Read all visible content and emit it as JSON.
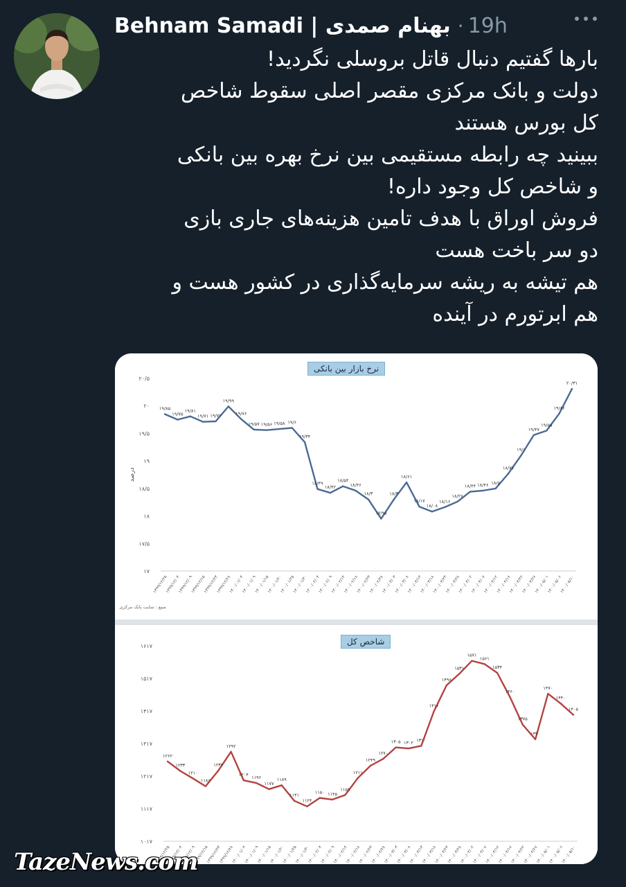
{
  "tweet": {
    "author": "Behnam Samadi | بهنام صمدی",
    "separator": "·",
    "time": "19h",
    "lines": [
      "بارها گفتیم دنبال قاتل بروسلی نگردید!",
      "دولت و بانک مرکزی مقصر اصلی سقوط شاخص",
      "کل بورس هستند",
      "ببینید چه رابطه مستقیمی بین نرخ بهره بین بانکی",
      "و شاخص کل وجود داره!",
      "فروش اوراق با هدف تامین هزینه‌های جاری بازی",
      "دو سر باخت هست",
      "هم تیشه به ریشه سرمایه‌گذاری در کشور هست و",
      "هم ابرتورم در آینده"
    ]
  },
  "watermark": "TazeNews.com",
  "chart_data": [
    {
      "type": "line",
      "title": "نرخ بازار بین بانکی",
      "ylabel": "درصد",
      "source": "منبع : سایت بانک مرکزی",
      "ylim": [
        17,
        20.5
      ],
      "yticks": [
        "۱۷",
        "۱۷/۵",
        "۱۸",
        "۱۸/۵",
        "۱۹",
        "۱۹/۵",
        "۲۰",
        "۲۰/۵"
      ],
      "color": "#4a6a93",
      "values": [
        19.85,
        19.75,
        19.81,
        19.71,
        19.72,
        19.99,
        19.76,
        19.57,
        19.56,
        19.58,
        19.6,
        19.34,
        18.49,
        18.42,
        18.54,
        18.46,
        18.3,
        17.95,
        18.3,
        18.61,
        18.17,
        18.08,
        18.16,
        18.26,
        18.44,
        18.46,
        18.5,
        18.77,
        19.1,
        19.47,
        19.55,
        19.86,
        20.31
      ],
      "labels": [
        "۱۹/۸۵",
        "۱۹/۷۵",
        "۱۹/۸۱",
        "۱۹/۷۱",
        "۱۹/۷۲",
        "۱۹/۹۹",
        "۱۹/۷۶",
        "۱۹/۵۷",
        "۱۹/۵۶",
        "۱۹/۵۸",
        "۱۹/۶",
        "۱۹/۳۴",
        "۱۸/۴۹",
        "۱۸/۴۲",
        "۱۸/۵۴",
        "۱۸/۴۶",
        "۱۸/۳",
        "۱۷/۹۵",
        "۱۸/۳",
        "۱۸/۶۱",
        "۱۸/۱۷",
        "۱۸/۰۸",
        "۱۸/۱۶",
        "۱۸/۲۶",
        "۱۸/۴۴",
        "۱۸/۴۶",
        "۱۸/۵",
        "۱۸/۷۷",
        "۱۹/۱",
        "۱۹/۴۷",
        "۱۹/۵۵",
        "۱۹/۸۶",
        "۲۰/۳۱"
      ],
      "xticks": [
        "۱۳۹۹/۱۲/۲۵",
        "۱۳۹۹/۱۲/۰۴",
        "۱۳۹۹/۱۲/۰۹",
        "۱۳۹۹/۱۲/۱۵",
        "۱۳۹۹/۱۲/۲۳",
        "۱۳۹۹/۱۲/۲۸",
        "۱۴۰۰/۰۱/۰۴",
        "۱۴۰۰/۰۱/۰۹",
        "۱۴۰۰/۰۱/۱۵",
        "۱۴۰۰/۰۱/۲۰",
        "۱۴۰۰/۰۱/۲۵",
        "۱۴۰۰/۰۱/۳۰",
        "۱۴۰۰/۰۲/۰۴",
        "۱۴۰۰/۰۲/۰۹",
        "۱۴۰۰/۰۲/۱۴",
        "۱۴۰۰/۰۲/۱۸",
        "۱۴۰۰/۰۲/۲۳",
        "۱۴۰۰/۰۲/۲۸",
        "۱۴۰۰/۰۳/۰۳",
        "۱۴۰۰/۰۳/۰۸",
        "۱۴۰۰/۰۳/۱۳",
        "۱۴۰۰/۰۳/۱۸",
        "۱۴۰۰/۰۳/۲۳",
        "۱۴۰۰/۰۳/۲۸",
        "۱۴۰۰/۰۴/۰۲",
        "۱۴۰۰/۰۴/۰۷",
        "۱۴۰۰/۰۴/۱۲",
        "۱۴۰۰/۰۴/۱۷",
        "۱۴۰۰/۰۴/۲۲",
        "۱۴۰۰/۰۴/۲۷",
        "۱۴۰۰/۰۵/۰۱",
        "۱۴۰۰/۰۵/۰۶",
        "۱۴۰۰/۰۵/۱۰"
      ]
    },
    {
      "type": "line",
      "title": "شاخص کل",
      "ylabel": "",
      "ylim": [
        1017000,
        1617000
      ],
      "yticks": [
        "۱۰۱۷",
        "۱۱۱۷",
        "۱۲۱۷",
        "۱۳۱۷",
        "۱۴۱۷",
        "۱۵۱۷",
        "۱۶۱۷"
      ],
      "color": "#b3423f",
      "values": [
        1262000,
        1233000,
        1210000,
        1186000,
        1234000,
        1292000,
        1204000,
        1196000,
        1177000,
        1189000,
        1141000,
        1124000,
        1150000,
        1145000,
        1159000,
        1211000,
        1249000,
        1270000,
        1305000,
        1302000,
        1310000,
        1416000,
        1496000,
        1531000,
        1571000,
        1561000,
        1534000,
        1460000,
        1375000,
        1330000,
        1470000,
        1440000,
        1405000
      ],
      "labels": [
        "۱۲۶۲",
        "۱۲۳۳",
        "۱۲۱۰",
        "۱۱۸۶",
        "۱۲۳۴",
        "۱۲۹۲",
        "۱۲۰۴",
        "۱۱۹۶",
        "۱۱۷۷",
        "۱۱۸۹",
        "۱۱۴۱",
        "۱۱۲۴",
        "۱۱۵۰",
        "۱۱۴۵",
        "۱۱۵۹",
        "۱۲۱۱",
        "۱۲۴۹",
        "۱۲۷۰",
        "۱۳۰۵",
        "۱۳۰۲",
        "۱۳۱۰",
        "۱۴۱۶",
        "۱۴۹۶",
        "۱۵۳۱",
        "۱۵۷۱",
        "۱۵۶۱",
        "۱۵۳۴",
        "۱۴۶۰",
        "۱۳۷۵",
        "۱۳۳۰",
        "۱۴۷۰",
        "۱۴۴۰",
        "۱۴۰۵"
      ],
      "xticks": [
        "۱۳۹۹/۱۲/۲۵",
        "۱۳۹۹/۱۲/۰۴",
        "۱۳۹۹/۱۲/۰۹",
        "۱۳۹۹/۱۲/۱۵",
        "۱۳۹۹/۱۲/۲۳",
        "۱۳۹۹/۱۲/۲۸",
        "۱۴۰۰/۰۱/۰۴",
        "۱۴۰۰/۰۱/۰۹",
        "۱۴۰۰/۰۱/۱۵",
        "۱۴۰۰/۰۱/۲۰",
        "۱۴۰۰/۰۱/۲۵",
        "۱۴۰۰/۰۱/۳۰",
        "۱۴۰۰/۰۲/۰۴",
        "۱۴۰۰/۰۲/۰۹",
        "۱۴۰۰/۰۲/۱۴",
        "۱۴۰۰/۰۲/۱۸",
        "۱۴۰۰/۰۲/۲۳",
        "۱۴۰۰/۰۲/۲۸",
        "۱۴۰۰/۰۳/۰۳",
        "۱۴۰۰/۰۳/۰۸",
        "۱۴۰۰/۰۳/۱۳",
        "۱۴۰۰/۰۳/۱۸",
        "۱۴۰۰/۰۳/۲۳",
        "۱۴۰۰/۰۳/۲۸",
        "۱۴۰۰/۰۴/۰۲",
        "۱۴۰۰/۰۴/۰۷",
        "۱۴۰۰/۰۴/۱۲",
        "۱۴۰۰/۰۴/۱۷",
        "۱۴۰۰/۰۴/۲۲",
        "۱۴۰۰/۰۴/۲۷",
        "۱۴۰۰/۰۵/۰۱",
        "۱۴۰۰/۰۵/۰۶",
        "۱۴۰۰/۰۵/۱۰"
      ]
    }
  ]
}
